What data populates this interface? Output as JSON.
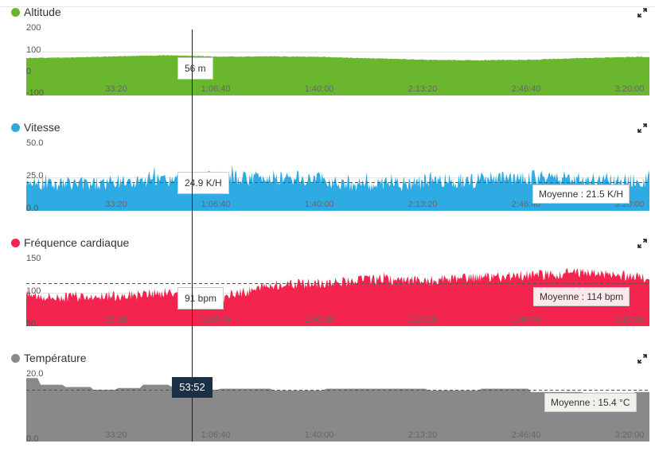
{
  "cursor_time": "53:52",
  "x_ticks": [
    "33:20",
    "1:06:40",
    "1:40:00",
    "2:13:20",
    "2:46:40",
    "3:20:00"
  ],
  "panels": [
    {
      "key": "altitude",
      "title": "Altitude",
      "color": "#6ab62e",
      "y_ticks": [
        "200",
        "100",
        "0",
        "-100"
      ],
      "tooltip": "56 m",
      "average_label": ""
    },
    {
      "key": "speed",
      "title": "Vitesse",
      "color": "#2fabe3",
      "y_ticks": [
        "50.0",
        "25.0",
        "0.0"
      ],
      "tooltip": "24.9 K/H",
      "average_label": "Moyenne : 21.5 K/H"
    },
    {
      "key": "heart",
      "title": "Fréquence cardiaque",
      "color": "#f3254e",
      "y_ticks": [
        "150",
        "100",
        "50"
      ],
      "tooltip": "91 bpm",
      "average_label": "Moyenne : 114 bpm"
    },
    {
      "key": "temp",
      "title": "Température",
      "color": "#898989",
      "y_ticks": [
        "20.0",
        "0.0"
      ],
      "tooltip": "",
      "average_label": "Moyenne : 15.4 °C"
    }
  ],
  "chart_data": [
    {
      "type": "area",
      "title": "Altitude",
      "xlabel": "",
      "ylabel": "",
      "ylim": [
        -100,
        200
      ],
      "grid": true,
      "x_tick_labels": [
        "33:20",
        "1:06:40",
        "1:40:00",
        "2:13:20",
        "2:46:40",
        "3:20:00"
      ],
      "x_seconds": [
        0,
        1000,
        2000,
        3000,
        4000,
        5000,
        6000,
        7000,
        8000,
        9000,
        10000,
        11000,
        12000,
        12600
      ],
      "values": [
        70,
        72,
        78,
        83,
        76,
        78,
        75,
        68,
        62,
        60,
        62,
        70,
        75,
        74
      ],
      "cursor_value": 56,
      "cursor_label": "56 m"
    },
    {
      "type": "area",
      "title": "Vitesse",
      "xlabel": "",
      "ylabel": "",
      "ylim": [
        0,
        50
      ],
      "grid": true,
      "x_tick_labels": [
        "33:20",
        "1:06:40",
        "1:40:00",
        "2:13:20",
        "2:46:40",
        "3:20:00"
      ],
      "x_seconds": [
        0,
        1000,
        2000,
        3000,
        4000,
        5000,
        6000,
        7000,
        8000,
        9000,
        10000,
        11000,
        12000,
        12600
      ],
      "values": [
        22,
        20,
        21,
        23,
        24,
        25,
        23,
        19,
        22,
        23,
        25,
        24,
        22,
        23
      ],
      "average": 21.5,
      "cursor_value": 24.9,
      "cursor_label": "24.9 K/H"
    },
    {
      "type": "area",
      "title": "Fréquence cardiaque",
      "xlabel": "",
      "ylabel": "",
      "ylim": [
        50,
        150
      ],
      "grid": true,
      "x_tick_labels": [
        "33:20",
        "1:06:40",
        "1:40:00",
        "2:13:20",
        "2:46:40",
        "3:20:00"
      ],
      "x_seconds": [
        0,
        1000,
        2000,
        3000,
        4000,
        5000,
        6000,
        7000,
        8000,
        9000,
        10000,
        11000,
        12000,
        12600
      ],
      "values": [
        100,
        93,
        95,
        100,
        92,
        112,
        115,
        120,
        118,
        122,
        126,
        130,
        125,
        122
      ],
      "average": 114,
      "cursor_value": 91,
      "cursor_label": "91 bpm"
    },
    {
      "type": "area",
      "title": "Température",
      "xlabel": "",
      "ylabel": "",
      "ylim": [
        0,
        20
      ],
      "grid": true,
      "x_tick_labels": [
        "33:20",
        "1:06:40",
        "1:40:00",
        "2:13:20",
        "2:46:40",
        "3:20:00"
      ],
      "x_seconds": [
        0,
        500,
        1000,
        1500,
        2000,
        2500,
        3000,
        3500,
        4000,
        5000,
        6000,
        7000,
        8000,
        9000,
        10000,
        11000,
        12000,
        12600
      ],
      "values": [
        19,
        17,
        16.3,
        15.5,
        16,
        17,
        16.5,
        15.5,
        15.8,
        15.3,
        15.8,
        15.8,
        15.3,
        15.8,
        14.8,
        14.6,
        14.8,
        14.8
      ],
      "average": 15.4
    }
  ]
}
